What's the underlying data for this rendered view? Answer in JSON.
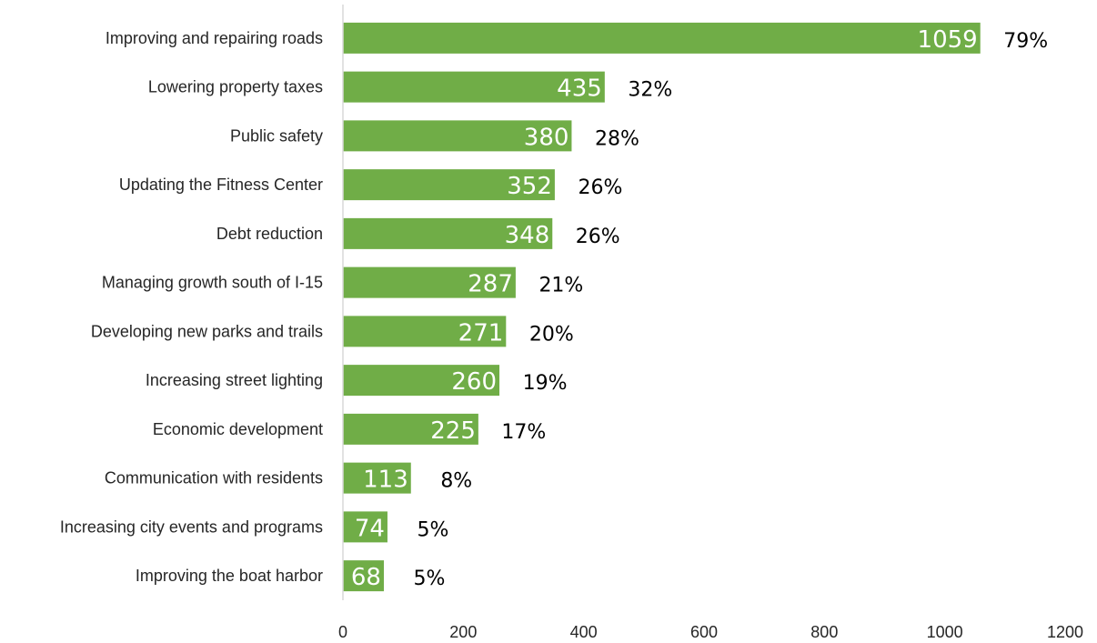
{
  "chart_data": {
    "type": "bar",
    "orientation": "horizontal",
    "categories": [
      "Improving and repairing roads",
      "Lowering property taxes",
      "Public safety",
      "Updating the Fitness Center",
      "Debt reduction",
      "Managing growth south of I-15",
      "Developing new parks and trails",
      "Increasing street lighting",
      "Economic development",
      "Communication with residents",
      "Increasing city events and programs",
      "Improving the boat harbor"
    ],
    "values": [
      1059,
      435,
      380,
      352,
      348,
      287,
      271,
      260,
      225,
      113,
      74,
      68
    ],
    "percent_labels": [
      "79%",
      "32%",
      "28%",
      "26%",
      "26%",
      "21%",
      "20%",
      "19%",
      "17%",
      "8%",
      "5%",
      "5%"
    ],
    "xlim": [
      0,
      1200
    ],
    "x_ticks": [
      0,
      200,
      400,
      600,
      800,
      1000,
      1200
    ],
    "grid": false,
    "legend": "none",
    "bar_color": "#70AD47",
    "title": "",
    "xlabel": "",
    "ylabel": ""
  }
}
